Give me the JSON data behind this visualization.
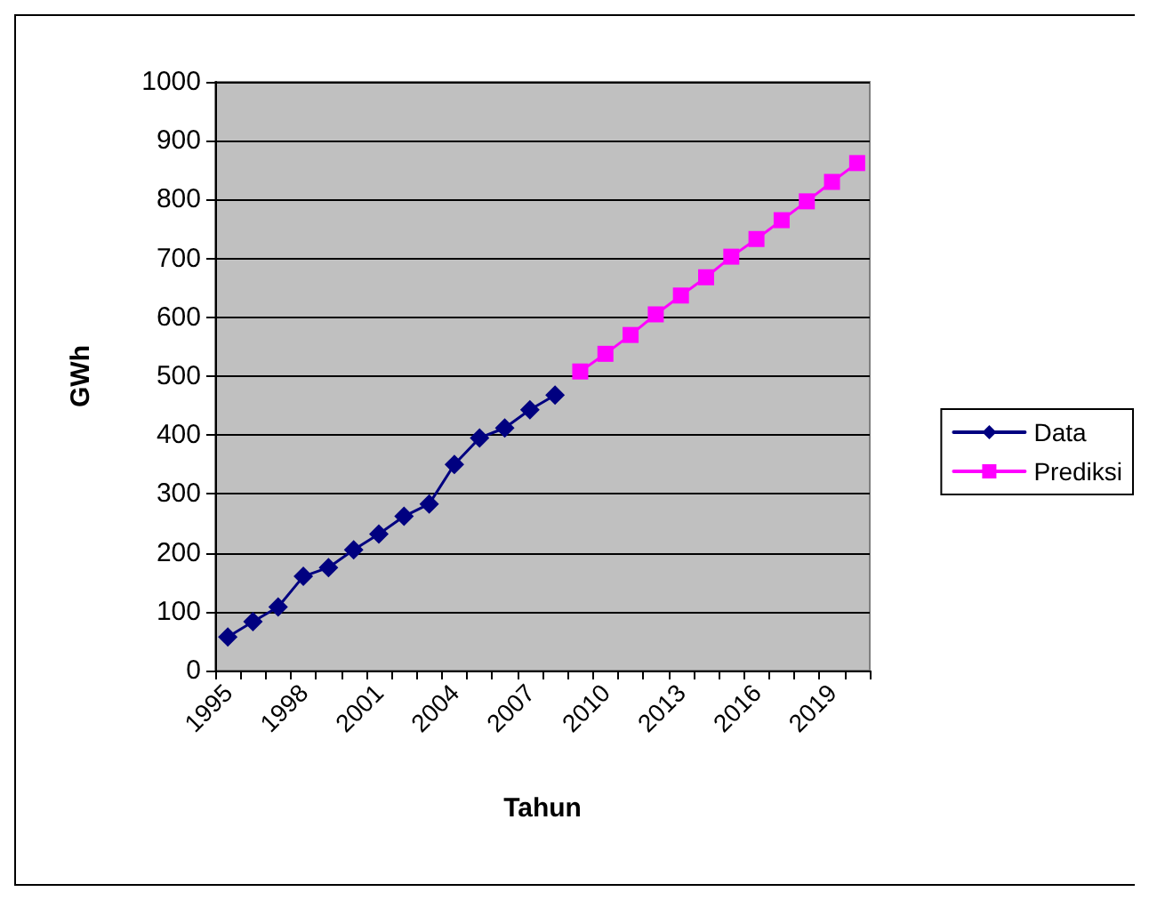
{
  "chart_data": {
    "type": "line",
    "xlabel": "Tahun",
    "ylabel": "GWh",
    "categories": [
      "1995",
      null,
      null,
      "1998",
      null,
      null,
      "2001",
      null,
      null,
      "2004",
      null,
      null,
      "2007",
      null,
      null,
      "2010",
      null,
      null,
      "2013",
      null,
      null,
      "2016",
      null,
      null,
      "2019",
      null
    ],
    "series": [
      {
        "name": "Data",
        "color": "#000080",
        "marker": "diamond",
        "values": [
          57,
          83,
          108,
          160,
          175,
          205,
          232,
          262,
          283,
          350,
          395,
          412,
          443,
          468,
          null,
          null,
          null,
          null,
          null,
          null,
          null,
          null,
          null,
          null,
          null,
          null
        ]
      },
      {
        "name": "Prediksi",
        "color": "#ff00ff",
        "marker": "square",
        "values": [
          null,
          null,
          null,
          null,
          null,
          null,
          null,
          null,
          null,
          null,
          null,
          null,
          null,
          null,
          508,
          538,
          570,
          605,
          637,
          668,
          703,
          733,
          765,
          797,
          830,
          862
        ]
      }
    ],
    "ylim": [
      0,
      1000
    ],
    "yticks": [
      0,
      100,
      200,
      300,
      400,
      500,
      600,
      700,
      800,
      900,
      1000
    ],
    "grid": "y",
    "legend": "right"
  }
}
